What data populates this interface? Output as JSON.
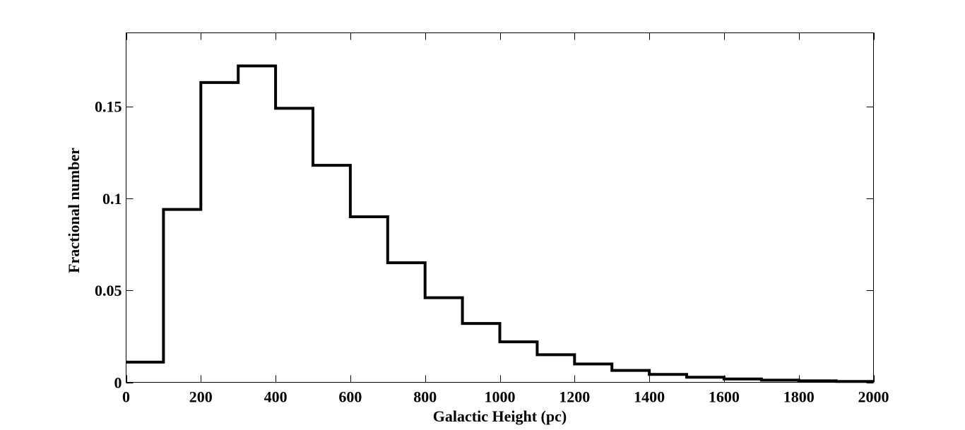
{
  "chart_data": {
    "type": "line",
    "style": "step-histogram",
    "title": "",
    "xlabel": "Galactic Height (pc)",
    "ylabel": "Fractional number",
    "xlim": [
      0,
      2000
    ],
    "ylim": [
      0,
      0.19
    ],
    "grid": false,
    "x_ticks": [
      0,
      200,
      400,
      600,
      800,
      1000,
      1200,
      1400,
      1600,
      1800,
      2000
    ],
    "x_tick_labels": [
      "0",
      "200",
      "400",
      "600",
      "800",
      "1000",
      "1200",
      "1400",
      "1600",
      "1800",
      "2000"
    ],
    "y_ticks": [
      0,
      0.05,
      0.1,
      0.15
    ],
    "y_tick_labels": [
      "0",
      "0.05",
      "0.1",
      "0.15"
    ],
    "bin_edges": [
      0,
      100,
      200,
      300,
      400,
      500,
      600,
      700,
      800,
      900,
      1000,
      1100,
      1200,
      1300,
      1400,
      1500,
      1600,
      1700,
      1800,
      1900,
      2000
    ],
    "values": [
      0.011,
      0.094,
      0.163,
      0.172,
      0.149,
      0.118,
      0.09,
      0.065,
      0.046,
      0.032,
      0.022,
      0.015,
      0.01,
      0.0065,
      0.0043,
      0.0028,
      0.0018,
      0.0012,
      0.0008,
      0.0005
    ],
    "colors": {
      "line": "#000000",
      "axes": "#000000",
      "background": "#ffffff"
    }
  }
}
